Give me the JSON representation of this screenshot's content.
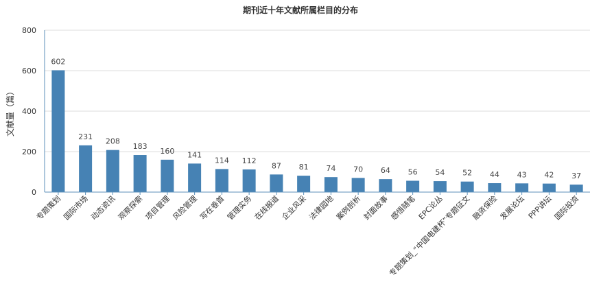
{
  "chart_data": {
    "type": "bar",
    "title": "期刊近十年文献所属栏目的分布",
    "ylabel": "文献量（篇）",
    "xlabel": "",
    "ylim": [
      0,
      800
    ],
    "yticks": [
      0,
      200,
      400,
      600,
      800
    ],
    "grid": true,
    "color": "#4682b4",
    "categories": [
      "专题策划",
      "国际市场",
      "动态资讯",
      "观察探索",
      "项目管理",
      "风险管理",
      "写在卷首",
      "管理实务",
      "在线报道",
      "企业风采",
      "法律园地",
      "案例剖析",
      "封面故事",
      "感悟随笔",
      "EPC论丛",
      "专题策划_“中国电建杯”专题征文",
      "融资保险",
      "发展论坛",
      "PPP讲坛",
      "国际投资"
    ],
    "values": [
      602,
      231,
      208,
      183,
      160,
      141,
      114,
      112,
      87,
      81,
      74,
      70,
      64,
      56,
      54,
      52,
      44,
      43,
      42,
      37
    ]
  }
}
